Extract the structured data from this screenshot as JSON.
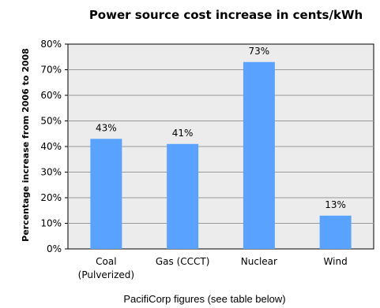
{
  "chart_data": {
    "type": "bar",
    "title": "Power source cost increase in cents/kWh",
    "ylabel": "Percentage increase from 2006 to 2008",
    "xlabel": "",
    "categories": [
      [
        "Coal",
        "(Pulverized)"
      ],
      [
        "Gas (CCCT)"
      ],
      [
        "Nuclear"
      ],
      [
        "Wind"
      ]
    ],
    "values": [
      43,
      41,
      73,
      13
    ],
    "data_labels": [
      "43%",
      "41%",
      "73%",
      "13%"
    ],
    "ylim": [
      0,
      80
    ],
    "yticks": [
      "0%",
      "10%",
      "20%",
      "30%",
      "40%",
      "50%",
      "60%",
      "70%",
      "80%"
    ],
    "grid": true,
    "colors": {
      "bar": "#5aa2ff",
      "plot_bg": "#ececec",
      "grid": "#999999"
    }
  },
  "caption": "PacifiCorp figures (see table below)"
}
